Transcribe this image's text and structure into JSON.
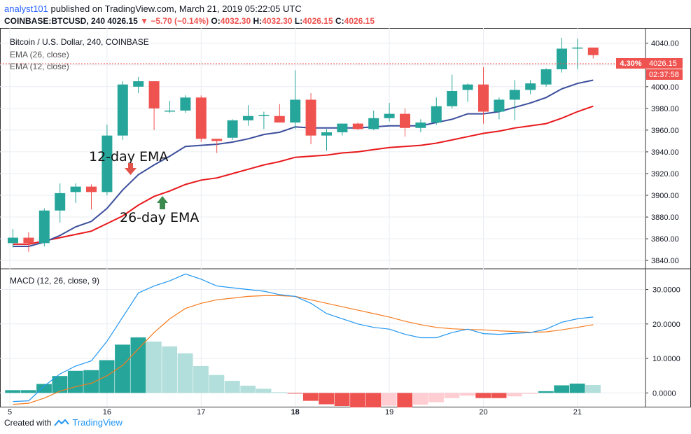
{
  "header": {
    "user": "analyst101",
    "published_text": "published on TradingView.com, March 21, 2019 05:22:05 UTC",
    "symbol_line": "COINBASE:BTCUSD, 240",
    "last": "4026.15",
    "change": "−5.70 (−0.14%)",
    "o_label": "O:",
    "o_val": "4032.30",
    "h_label": "H:",
    "h_val": "4032.30",
    "l_label": "L:",
    "l_val": "4026.15",
    "c_label": "C:",
    "c_val": "4026.15"
  },
  "pane_title": "Bitcoin / U.S. Dollar, 240, COINBASE",
  "ema26_label": "EMA (26, close)",
  "ema12_label": "EMA (12, close)",
  "annotation_12": "12-day EMA",
  "annotation_26": "26-day EMA",
  "price_tag": {
    "pct": "4.30%",
    "price": "4026.15",
    "timer": "02:37:58"
  },
  "macd_label": "MACD (12, 26, close, 9)",
  "footer": {
    "created": "Created with",
    "brand": "TradingView"
  },
  "colors": {
    "up": "#26a69a",
    "down": "#ef5350",
    "ema12": "#3c4e9c",
    "ema26": "#e8191c",
    "macd": "#2196f3",
    "signal": "#f57c1f",
    "hist_up_strong": "#26a69a",
    "hist_up_weak": "#b2dfdb",
    "hist_dn_strong": "#ef5350",
    "hist_dn_weak": "#ffcdd2"
  },
  "chart_data": [
    {
      "type": "candlestick",
      "title": "Bitcoin / U.S. Dollar, 240, COINBASE",
      "y_ticks": [
        3840,
        3860,
        3880,
        3900,
        3920,
        3940,
        3960,
        3980,
        4000,
        4020,
        4040
      ],
      "ylim": [
        3833,
        4054
      ],
      "x_ticks": [
        {
          "label": "5",
          "index": -0.2
        },
        {
          "label": "16",
          "index": 6
        },
        {
          "label": "17",
          "index": 12
        },
        {
          "label": "18",
          "index": 18
        },
        {
          "label": "19",
          "index": 24
        },
        {
          "label": "20",
          "index": 30
        },
        {
          "label": "21",
          "index": 36
        }
      ],
      "candles": [
        {
          "o": 3856,
          "h": 3869,
          "l": 3852,
          "c": 3861
        },
        {
          "o": 3861,
          "h": 3866,
          "l": 3848,
          "c": 3856
        },
        {
          "o": 3856,
          "h": 3888,
          "l": 3853,
          "c": 3886
        },
        {
          "o": 3886,
          "h": 3911,
          "l": 3875,
          "c": 3902
        },
        {
          "o": 3903,
          "h": 3911,
          "l": 3893,
          "c": 3908
        },
        {
          "o": 3908,
          "h": 3910,
          "l": 3887,
          "c": 3903
        },
        {
          "o": 3903,
          "h": 3965,
          "l": 3900,
          "c": 3955
        },
        {
          "o": 3955,
          "h": 4005,
          "l": 3951,
          "c": 4002
        },
        {
          "o": 4000,
          "h": 4009,
          "l": 3994,
          "c": 4005
        },
        {
          "o": 4005,
          "h": 4005,
          "l": 3960,
          "c": 3980
        },
        {
          "o": 3978,
          "h": 3987,
          "l": 3976,
          "c": 3978
        },
        {
          "o": 3978,
          "h": 3992,
          "l": 3976,
          "c": 3990
        },
        {
          "o": 3990,
          "h": 3992,
          "l": 3949,
          "c": 3952
        },
        {
          "o": 3952,
          "h": 3952,
          "l": 3939,
          "c": 3950
        },
        {
          "o": 3953,
          "h": 3970,
          "l": 3951,
          "c": 3969
        },
        {
          "o": 3969,
          "h": 3983,
          "l": 3964,
          "c": 3973
        },
        {
          "o": 3973,
          "h": 3977,
          "l": 3961,
          "c": 3974
        },
        {
          "o": 3973,
          "h": 3984,
          "l": 3968,
          "c": 3967
        },
        {
          "o": 3967,
          "h": 4015,
          "l": 3961,
          "c": 3988
        },
        {
          "o": 3988,
          "h": 3994,
          "l": 3947,
          "c": 3955
        },
        {
          "o": 3955,
          "h": 3961,
          "l": 3941,
          "c": 3958
        },
        {
          "o": 3958,
          "h": 3966,
          "l": 3955,
          "c": 3966
        },
        {
          "o": 3966,
          "h": 3967,
          "l": 3960,
          "c": 3961
        },
        {
          "o": 3961,
          "h": 3978,
          "l": 3960,
          "c": 3971
        },
        {
          "o": 3971,
          "h": 3985,
          "l": 3968,
          "c": 3975
        },
        {
          "o": 3975,
          "h": 3980,
          "l": 3954,
          "c": 3962
        },
        {
          "o": 3962,
          "h": 3970,
          "l": 3958,
          "c": 3967
        },
        {
          "o": 3967,
          "h": 3990,
          "l": 3965,
          "c": 3982
        },
        {
          "o": 3982,
          "h": 4011,
          "l": 3980,
          "c": 3996
        },
        {
          "o": 3997,
          "h": 4003,
          "l": 3986,
          "c": 4002
        },
        {
          "o": 4002,
          "h": 4018,
          "l": 3966,
          "c": 3977
        },
        {
          "o": 3977,
          "h": 3990,
          "l": 3970,
          "c": 3988
        },
        {
          "o": 3988,
          "h": 4006,
          "l": 3969,
          "c": 3997
        },
        {
          "o": 3997,
          "h": 4006,
          "l": 3993,
          "c": 4003
        },
        {
          "o": 4002,
          "h": 4017,
          "l": 4000,
          "c": 4016
        },
        {
          "o": 4016,
          "h": 4045,
          "l": 4013,
          "c": 4035
        },
        {
          "o": 4036,
          "h": 4044,
          "l": 4016,
          "c": 4036
        },
        {
          "o": 4036,
          "h": 4036,
          "l": 4026,
          "c": 4029
        }
      ],
      "ema12": [
        3853,
        3853,
        3857,
        3863,
        3871,
        3876,
        3888,
        3905,
        3919,
        3928,
        3936,
        3945,
        3946,
        3947,
        3949,
        3952,
        3956,
        3958,
        3963,
        3962,
        3962,
        3962,
        3962,
        3963,
        3964,
        3964,
        3964,
        3967,
        3970,
        3975,
        3975,
        3977,
        3981,
        3985,
        3990,
        3998,
        4003,
        4006
      ],
      "ema26": [
        3855,
        3855,
        3858,
        3861,
        3864,
        3867,
        3874,
        3881,
        3891,
        3899,
        3904,
        3910,
        3914,
        3916,
        3920,
        3924,
        3928,
        3931,
        3935,
        3936,
        3937,
        3939,
        3940,
        3942,
        3944,
        3945,
        3946,
        3948,
        3951,
        3954,
        3957,
        3959,
        3962,
        3964,
        3966,
        3971,
        3977,
        3982
      ]
    },
    {
      "type": "bar",
      "title": "MACD (12, 26, close, 9)",
      "y_ticks": [
        0,
        10,
        20,
        30
      ],
      "ylim": [
        -4,
        36
      ],
      "series": [
        {
          "name": "histogram",
          "values": [
            0.8,
            0.8,
            2.6,
            4.9,
            6.4,
            6.6,
            9.5,
            14.0,
            16.1,
            14.9,
            13.5,
            11.5,
            7.8,
            5.2,
            3.5,
            2.1,
            1.2,
            0.2,
            -0.2,
            -2.3,
            -3.3,
            -3.8,
            -4.2,
            -4.2,
            -3.7,
            -4.2,
            -3.4,
            -2.7,
            -1.5,
            -0.8,
            -1.5,
            -1.5,
            -1.0,
            -0.3,
            0.5,
            2.2,
            2.7,
            2.3
          ]
        },
        {
          "name": "MACD",
          "values": [
            -2.5,
            -2.3,
            2.0,
            5.5,
            7.8,
            9.3,
            15.0,
            22.0,
            29.0,
            31.0,
            32.5,
            34.5,
            33.0,
            31.0,
            30.5,
            30.0,
            29.5,
            28.5,
            28.0,
            26.0,
            23.0,
            21.5,
            20.0,
            19.0,
            18.5,
            17.0,
            16.0,
            16.0,
            17.5,
            18.5,
            17.2,
            17.0,
            17.3,
            17.5,
            18.5,
            20.5,
            21.5,
            22.0
          ]
        },
        {
          "name": "signal",
          "values": [
            -3.3,
            -3.0,
            -1.5,
            0.5,
            1.8,
            2.8,
            5.0,
            8.0,
            12.8,
            17.5,
            21.5,
            24.5,
            26.0,
            27.0,
            27.5,
            28.0,
            28.2,
            28.2,
            28.0,
            27.0,
            26.0,
            25.0,
            24.0,
            23.0,
            22.0,
            20.8,
            19.8,
            19.0,
            18.6,
            18.4,
            18.3,
            18.0,
            17.8,
            17.6,
            17.7,
            18.3,
            19.0,
            19.8
          ]
        }
      ]
    }
  ]
}
